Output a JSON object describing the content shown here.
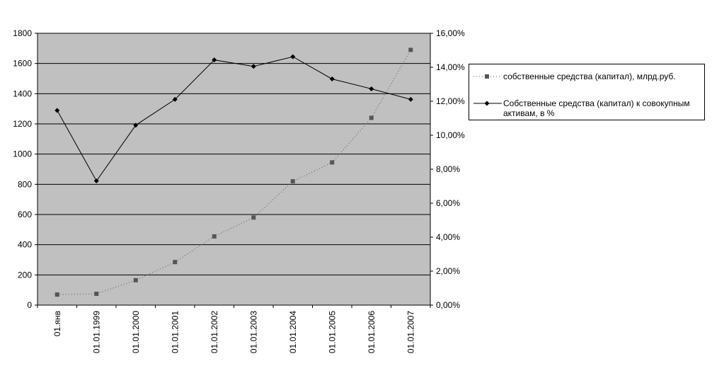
{
  "chart_data": {
    "type": "line",
    "categories": [
      "01.янв",
      "01.01.1999",
      "01.01.2000",
      "01.01.2001",
      "01.01.2002",
      "01.01.2003",
      "01.01.2004",
      "01.01.2005",
      "01.01.2006",
      "01.01.2007"
    ],
    "series": [
      {
        "name": "собственные средства (капитал), млрд.руб.",
        "axis": "left",
        "style": "dotted-square",
        "color": "#555555",
        "values": [
          70,
          75,
          165,
          285,
          455,
          580,
          820,
          945,
          1240,
          1690
        ]
      },
      {
        "name": "Собственные средства (капитал) к совокупным активам, в %",
        "axis": "right",
        "style": "solid-diamond",
        "color": "#000000",
        "values": [
          0.1146,
          0.0731,
          0.1059,
          0.1211,
          0.1443,
          0.1405,
          0.1462,
          0.1331,
          0.1273,
          0.1211
        ]
      }
    ],
    "y_left": {
      "ylim": [
        0,
        1800
      ],
      "ticks": [
        "0",
        "200",
        "400",
        "600",
        "800",
        "1000",
        "1200",
        "1400",
        "1600",
        "1800"
      ]
    },
    "y_right": {
      "ylim": [
        0,
        0.16
      ],
      "ticks": [
        "0,00%",
        "2,00%",
        "4,00%",
        "6,00%",
        "8,00%",
        "10,00%",
        "12,00%",
        "14,00%",
        "16,00%"
      ]
    },
    "grid": true,
    "plot_background": "#c0c0c0",
    "legend_placement": "right"
  }
}
